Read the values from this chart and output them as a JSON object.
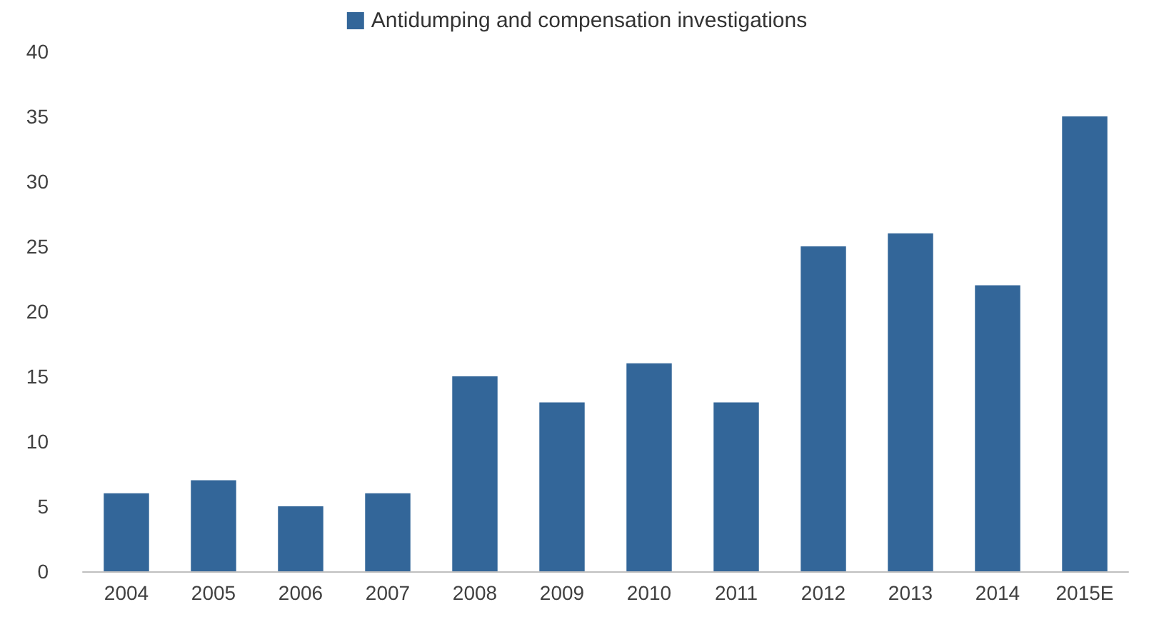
{
  "chart_data": {
    "type": "bar",
    "categories": [
      "2004",
      "2005",
      "2006",
      "2007",
      "2008",
      "2009",
      "2010",
      "2011",
      "2012",
      "2013",
      "2014",
      "2015E"
    ],
    "series": [
      {
        "name": "Antidumping and compensation investigations",
        "color": "#336699",
        "values": [
          6,
          7,
          5,
          6,
          15,
          13,
          16,
          13,
          25,
          26,
          22,
          35
        ]
      }
    ],
    "ylim": [
      0,
      40
    ],
    "yticks": [
      0,
      5,
      10,
      15,
      20,
      25,
      30,
      35,
      40
    ],
    "grid": false,
    "legend": "top"
  }
}
